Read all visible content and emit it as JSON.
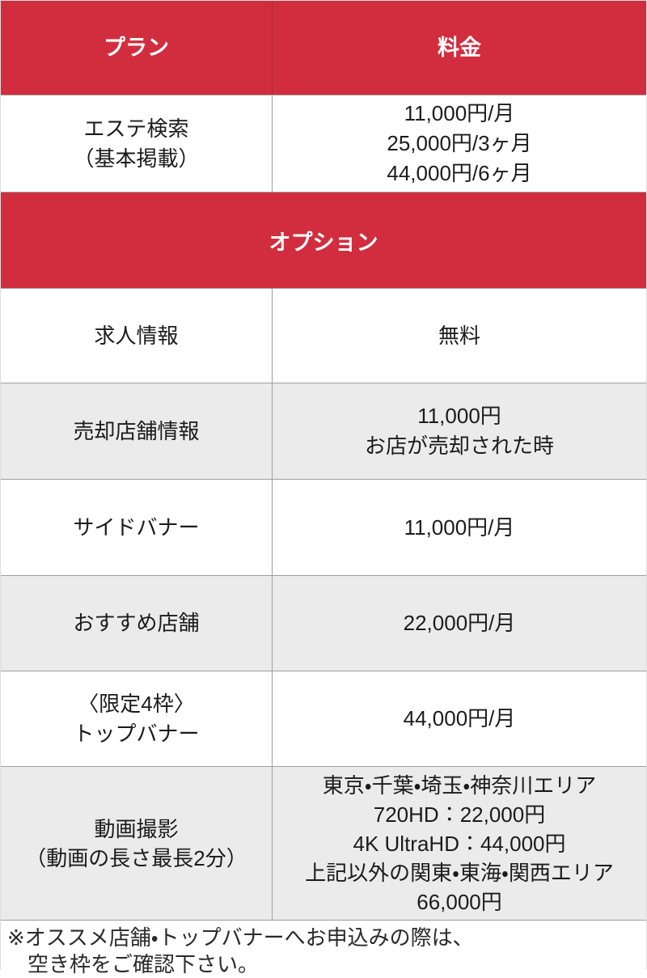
{
  "colors": {
    "red": "#d22d3e",
    "red_divider": "#b12a38",
    "gray_row": "#ebebeb",
    "border": "#9e9e9e",
    "header_text": "#ffffff",
    "text": "#1b1b1b"
  },
  "table": {
    "header": {
      "plan": "プラン",
      "price": "料金"
    },
    "basic_row": {
      "plan_lines": [
        "エステ検索",
        "（基本掲載）"
      ],
      "price_lines": [
        "11,000円/月",
        "25,000円/3ヶ月",
        "44,000円/6ヶ月"
      ]
    },
    "section_banner": "オプション",
    "option_rows": [
      {
        "plan_lines": [
          "求人情報"
        ],
        "price_lines": [
          "無料"
        ]
      },
      {
        "plan_lines": [
          "売却店舗情報"
        ],
        "price_lines": [
          "11,000円",
          "お店が売却された時"
        ]
      },
      {
        "plan_lines": [
          "サイドバナー"
        ],
        "price_lines": [
          "11,000円/月"
        ]
      },
      {
        "plan_lines": [
          "おすすめ店舗"
        ],
        "price_lines": [
          "22,000円/月"
        ]
      },
      {
        "plan_lines": [
          "〈限定4枠〉",
          "トップバナー"
        ],
        "price_lines": [
          "44,000円/月"
        ]
      },
      {
        "plan_lines": [
          "動画撮影",
          "（動画の長さ最長2分）"
        ],
        "price_lines": [
          "東京・千葉・埼玉・神奈川エリア",
          "720HD：22,000円",
          "4K UltraHD：44,000円",
          "上記以外の関東・東海・関西エリア",
          "66,000円"
        ]
      }
    ]
  },
  "footer_note_lines": [
    "※オススメ店舗・トップバナーへお申込みの際は、",
    "空き枠をご確認下さい。"
  ]
}
